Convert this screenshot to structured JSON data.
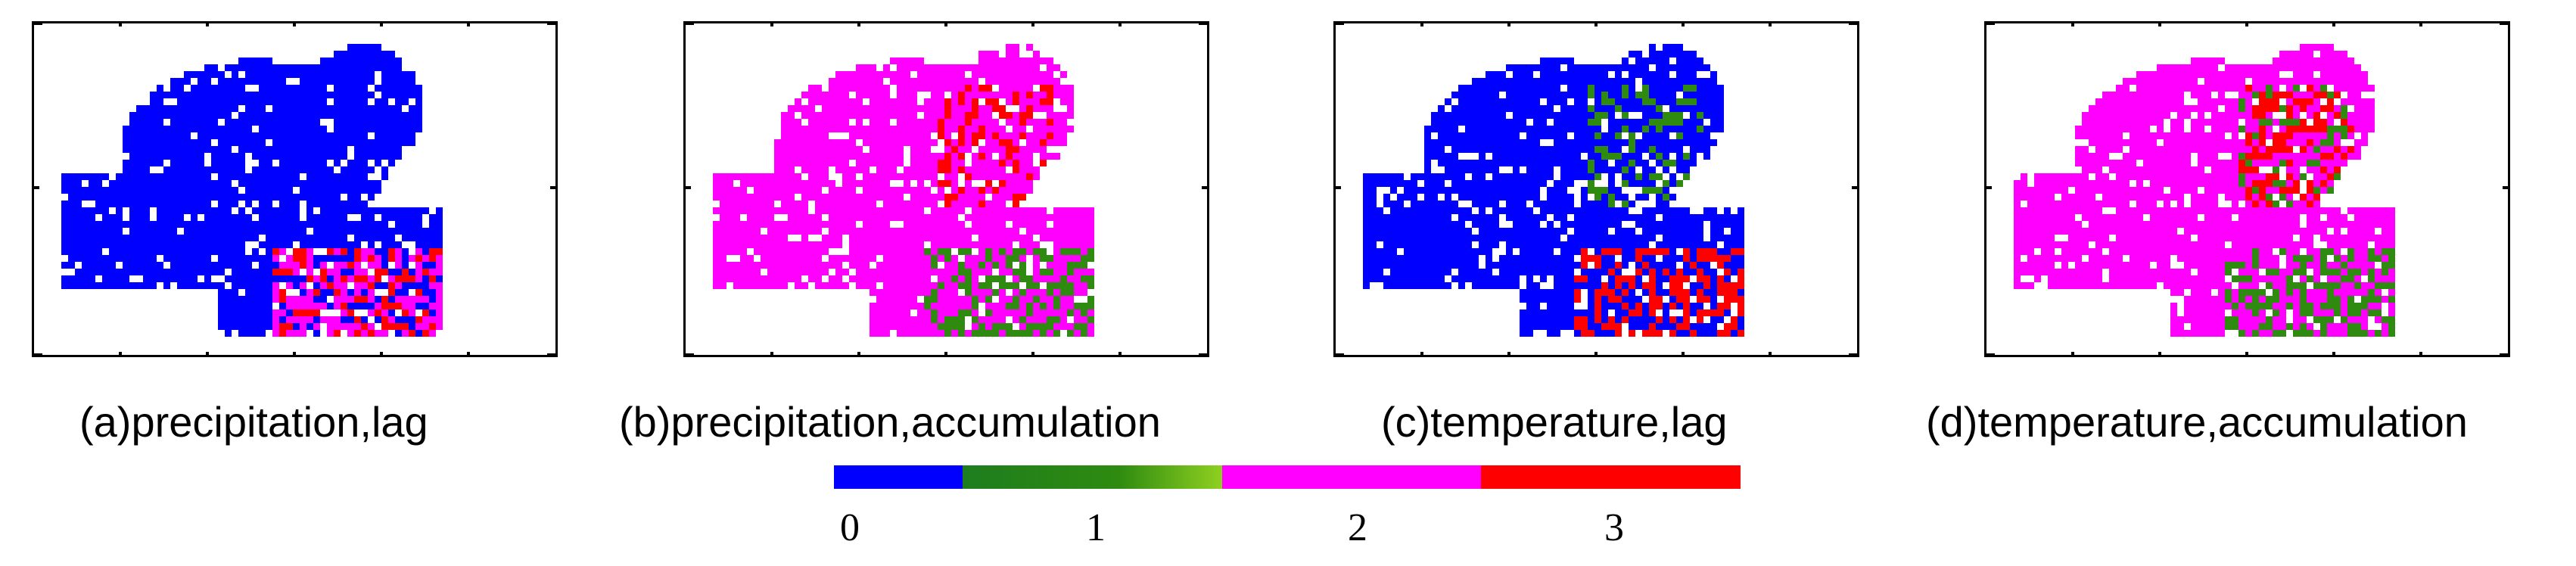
{
  "panels": [
    {
      "id": "a",
      "caption": "(a)precipitation,lag",
      "base_class": 0,
      "hotspots": [
        {
          "cls": 3,
          "where": "south"
        },
        {
          "cls": 2,
          "where": "south"
        }
      ]
    },
    {
      "id": "b",
      "caption": "(b)precipitation,accumulation",
      "base_class": 2,
      "hotspots": [
        {
          "cls": 3,
          "where": "north"
        },
        {
          "cls": 1,
          "where": "south"
        }
      ]
    },
    {
      "id": "c",
      "caption": "(c)temperature,lag",
      "base_class": 0,
      "hotspots": [
        {
          "cls": 1,
          "where": "north"
        },
        {
          "cls": 3,
          "where": "south"
        }
      ]
    },
    {
      "id": "d",
      "caption": "(d)temperature,accumulation",
      "base_class": 2,
      "hotspots": [
        {
          "cls": 1,
          "where": "north"
        },
        {
          "cls": 1,
          "where": "south"
        },
        {
          "cls": 3,
          "where": "north"
        }
      ]
    }
  ],
  "legend": {
    "labels": [
      "0",
      "1",
      "2",
      "3"
    ],
    "colors": {
      "0": "#0000ff",
      "1": "#2e8b10",
      "2": "#ff00ff",
      "3": "#ff0000"
    }
  }
}
